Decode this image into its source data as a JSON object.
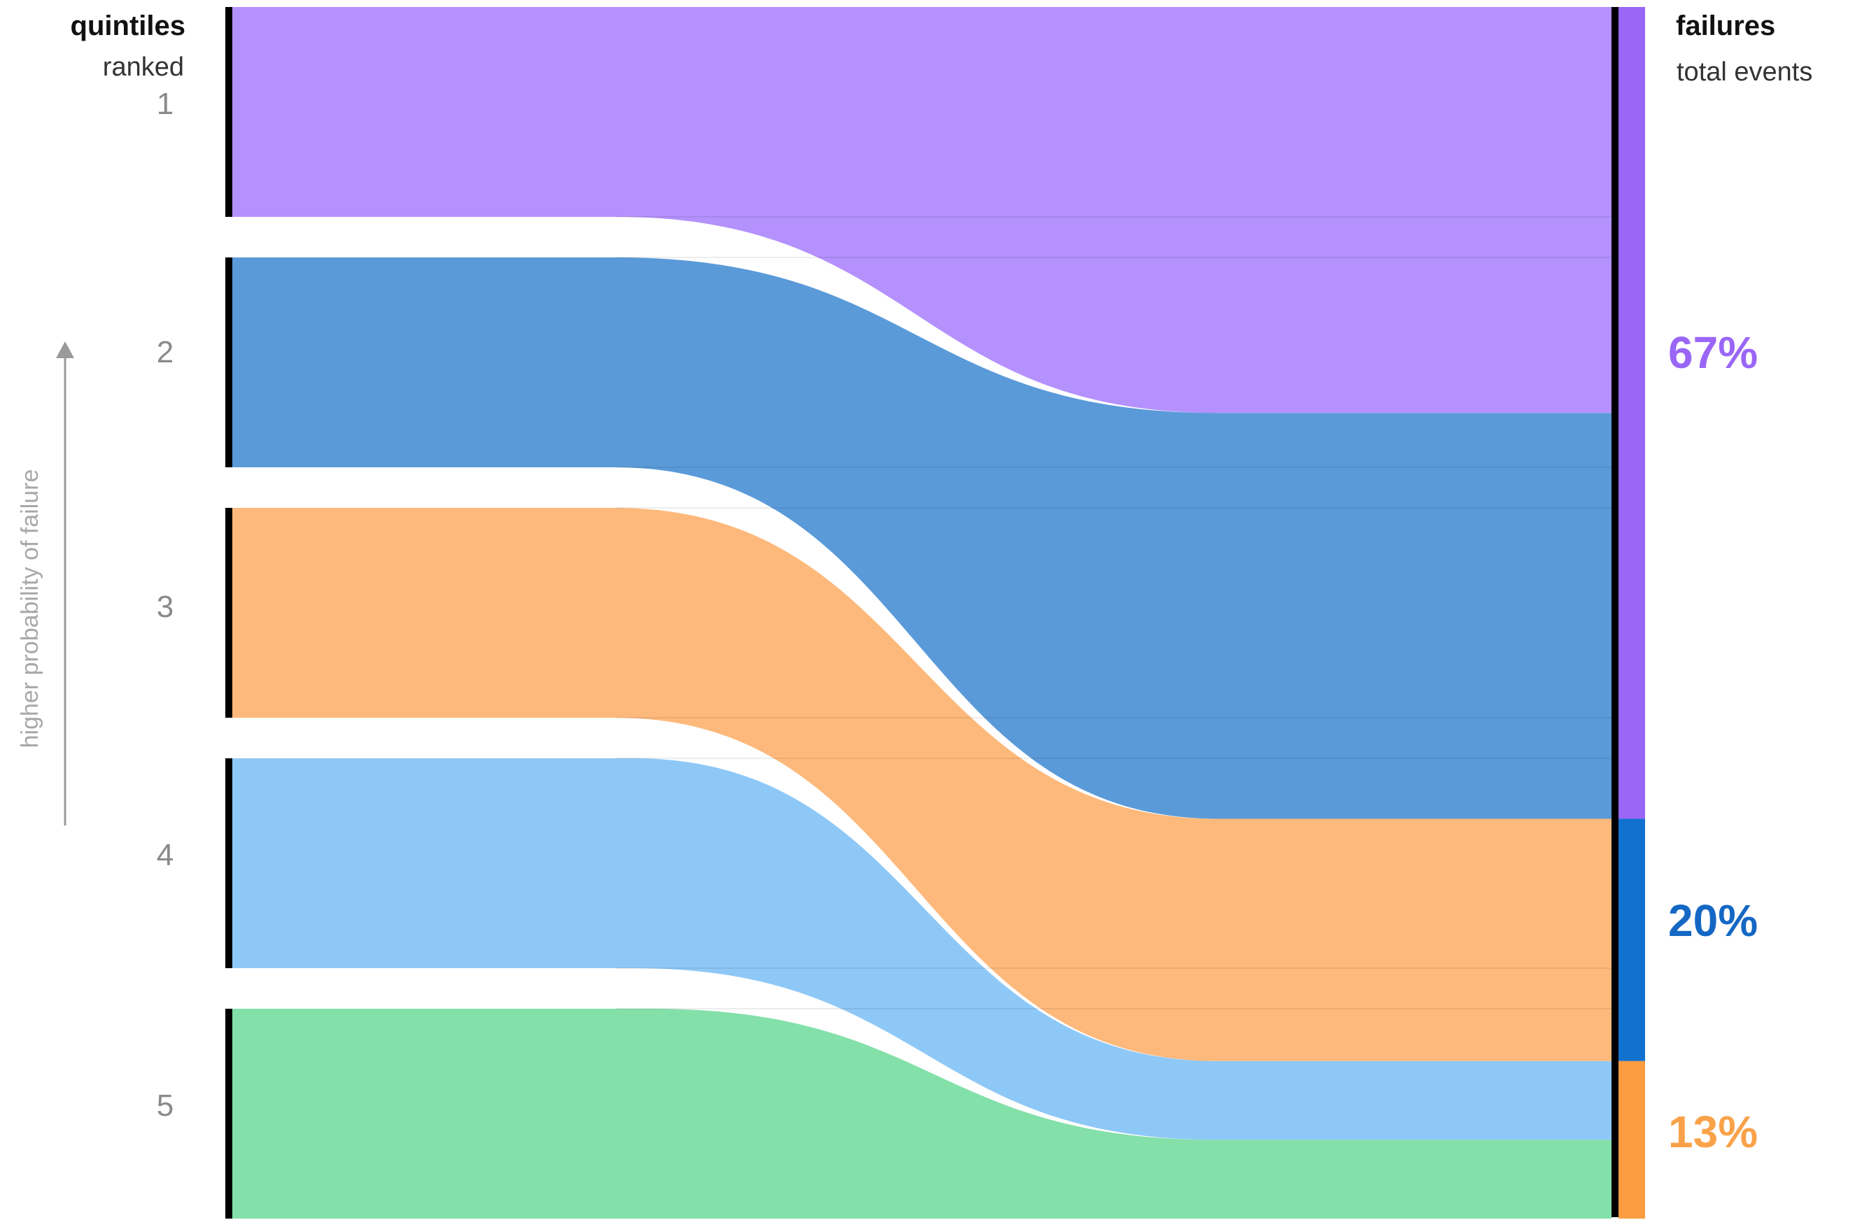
{
  "chart_data": {
    "type": "sankey",
    "left_header": {
      "title": "quintiles",
      "subtitle": "ranked"
    },
    "right_header": {
      "title": "failures",
      "subtitle": "total events"
    },
    "axis_note": "higher probability of failure",
    "quintiles": [
      {
        "label": "1",
        "color": "#b491fc"
      },
      {
        "label": "2",
        "color": "#5a9ad9"
      },
      {
        "label": "3",
        "color": "#fdb97b"
      },
      {
        "label": "4",
        "color": "#8ec8f7"
      },
      {
        "label": "5",
        "color": "#84e0a9"
      }
    ],
    "outcomes": [
      {
        "label": "67%",
        "value": 67,
        "color": "#9966f5",
        "text_color": "#9a66f6"
      },
      {
        "label": "20%",
        "value": 20,
        "color": "#1271cf",
        "text_color": "#1468c4"
      },
      {
        "label": "13%",
        "value": 13,
        "color": "#fd9c40",
        "text_color": "#f9a24a"
      }
    ],
    "flows": [
      {
        "from": "1",
        "to": "67%",
        "share": 100
      },
      {
        "from": "2",
        "to": "67%",
        "share": 100
      },
      {
        "from": "3",
        "to": "20%",
        "share": 100
      },
      {
        "from": "4",
        "to": "13%",
        "share": 100
      },
      {
        "from": "5",
        "to": "13%",
        "share": 100
      }
    ]
  }
}
